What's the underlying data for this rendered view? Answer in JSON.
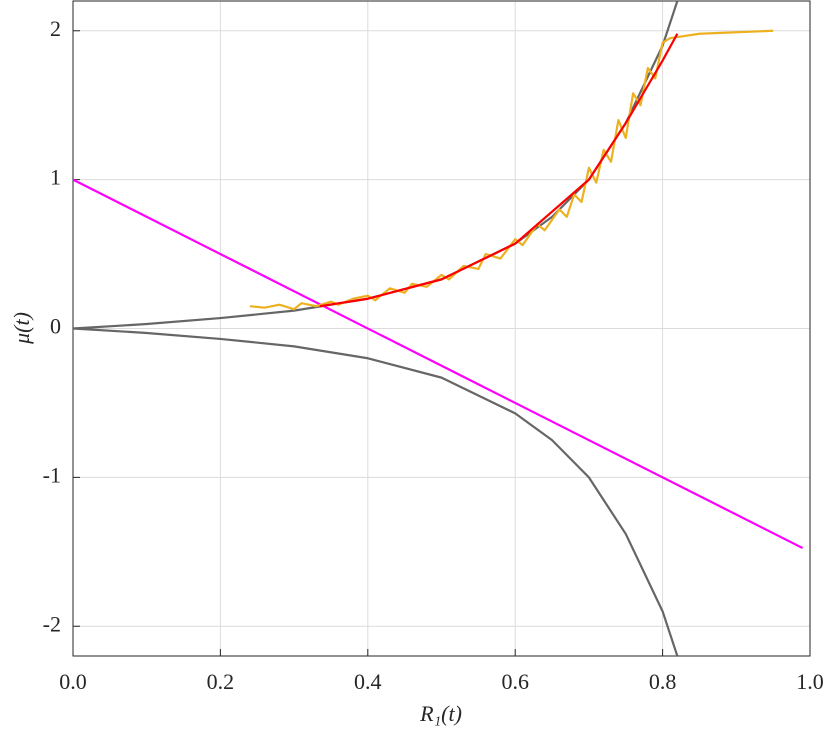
{
  "chart_data": {
    "type": "line",
    "xlabel": "R₁(t)",
    "ylabel": "μ(t)",
    "xlim": [
      0,
      1
    ],
    "ylim": [
      -2.2,
      2.2
    ],
    "xticks": [
      {
        "value": 0,
        "label": "0.0"
      },
      0.2,
      0.4,
      0.6,
      0.8,
      {
        "value": 1,
        "label": "1.0"
      }
    ],
    "yticks": [
      -2,
      -1,
      0,
      1,
      2
    ],
    "grid": true,
    "series": [
      {
        "color": "#666666",
        "x": [
          0,
          0.1,
          0.2,
          0.3,
          0.4,
          0.5,
          0.6,
          0.65,
          0.7,
          0.75,
          0.8,
          0.82
        ],
        "values": [
          0,
          0.03,
          0.07,
          0.12,
          0.2,
          0.33,
          0.57,
          0.75,
          1.0,
          1.38,
          1.9,
          2.2
        ]
      },
      {
        "color": "#666666",
        "x": [
          0,
          0.1,
          0.2,
          0.3,
          0.4,
          0.5,
          0.6,
          0.65,
          0.7,
          0.75,
          0.8,
          0.82
        ],
        "values": [
          0,
          -0.03,
          -0.07,
          -0.12,
          -0.2,
          -0.33,
          -0.57,
          -0.75,
          -1.0,
          -1.38,
          -1.9,
          -2.2
        ]
      },
      {
        "color": "#ff00ff",
        "x": [
          0,
          0.99
        ],
        "values": [
          1,
          -1.475
        ]
      },
      {
        "color": "#edb120",
        "x": [
          0.24,
          0.26,
          0.28,
          0.3,
          0.31,
          0.33,
          0.35,
          0.36,
          0.38,
          0.4,
          0.41,
          0.43,
          0.45,
          0.46,
          0.48,
          0.5,
          0.51,
          0.53,
          0.55,
          0.56,
          0.58,
          0.6,
          0.61,
          0.63,
          0.64,
          0.66,
          0.67,
          0.68,
          0.69,
          0.7,
          0.71,
          0.72,
          0.73,
          0.74,
          0.75,
          0.76,
          0.77,
          0.78,
          0.79,
          0.8,
          0.81,
          0.85,
          0.9,
          0.95
        ],
        "values": [
          0.15,
          0.14,
          0.16,
          0.13,
          0.17,
          0.15,
          0.18,
          0.16,
          0.2,
          0.22,
          0.19,
          0.27,
          0.24,
          0.3,
          0.28,
          0.36,
          0.33,
          0.42,
          0.4,
          0.5,
          0.47,
          0.6,
          0.56,
          0.7,
          0.66,
          0.8,
          0.75,
          0.9,
          0.85,
          1.08,
          0.98,
          1.2,
          1.12,
          1.4,
          1.28,
          1.58,
          1.5,
          1.75,
          1.68,
          1.92,
          1.95,
          1.98,
          1.99,
          2.0
        ]
      },
      {
        "color": "#ff0000",
        "x": [
          0.335,
          0.4,
          0.5,
          0.6,
          0.7,
          0.75,
          0.8,
          0.82
        ],
        "values": [
          0.15,
          0.2,
          0.33,
          0.57,
          1.0,
          1.38,
          1.8,
          1.98
        ]
      }
    ]
  }
}
